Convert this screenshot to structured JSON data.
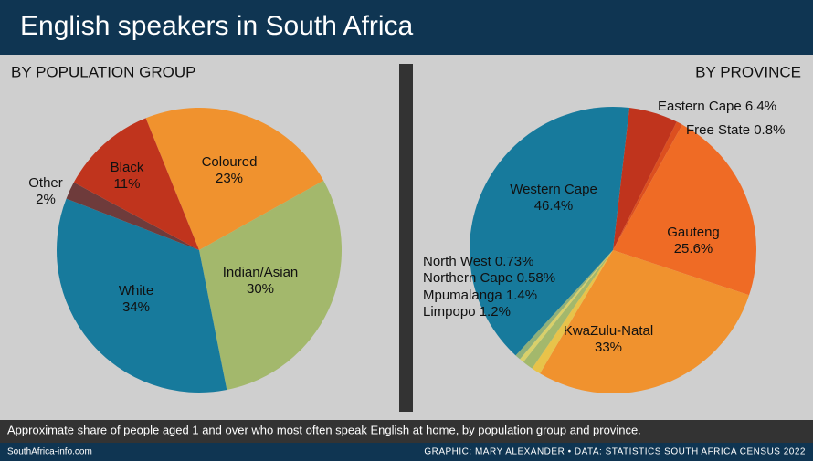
{
  "title": "English speakers in South Africa",
  "caption": "Approximate share of people aged 1 and over who most often speak English at home, by population group and province.",
  "source_left": "SouthAfrica-info.com",
  "source_right": "GRAPHIC: MARY ALEXANDER • DATA: STATISTICS SOUTH AFRICA CENSUS 2022",
  "chart_data": [
    {
      "type": "pie",
      "title": "BY POPULATION GROUP",
      "categories": [
        "Coloured",
        "Indian/Asian",
        "White",
        "Other",
        "Black"
      ],
      "values": [
        23,
        30,
        34,
        2,
        11
      ],
      "value_labels": [
        "23%",
        "30%",
        "34%",
        "2%",
        "11%"
      ],
      "colors": [
        "#f0922e",
        "#a3b86c",
        "#177a9c",
        "#6e3b3b",
        "#c0341d"
      ]
    },
    {
      "type": "pie",
      "title": "BY PROVINCE",
      "categories": [
        "Eastern Cape",
        "Free State",
        "Gauteng",
        "KwaZulu-Natal",
        "Limpopo",
        "Mpumalanga",
        "Northern Cape",
        "North West",
        "Western Cape"
      ],
      "values": [
        6.4,
        0.8,
        25.6,
        33,
        1.2,
        1.4,
        0.58,
        0.73,
        46.4
      ],
      "value_labels": [
        "6.4%",
        "0.8%",
        "25.6%",
        "33%",
        "1.2%",
        "1.4%",
        "0.58%",
        "0.73%",
        "46.4%"
      ],
      "colors": [
        "#c0341d",
        "#dc4f1f",
        "#ef6b25",
        "#f0922e",
        "#e8c34a",
        "#a3b86c",
        "#d9d06a",
        "#8fb07a",
        "#177a9c"
      ]
    }
  ]
}
